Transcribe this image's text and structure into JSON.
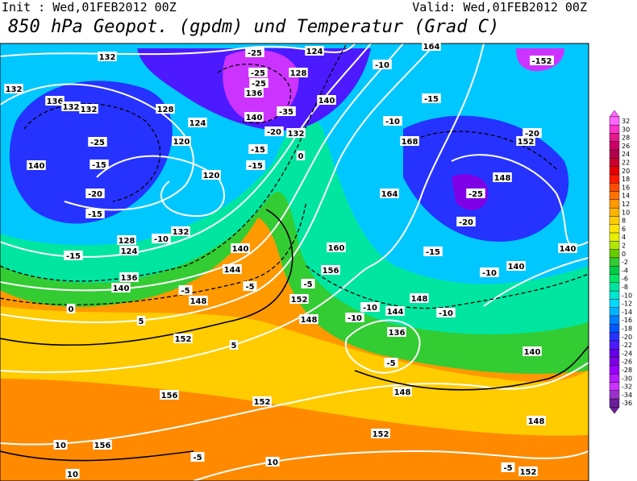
{
  "header": {
    "init": "Init : Wed,01FEB2012 00Z",
    "valid": "Valid: Wed,01FEB2012 00Z",
    "title": "850 hPa Geopot. (gpdm) und Temperatur (Grad C)"
  },
  "colorbar": {
    "levels": [
      32,
      30,
      28,
      26,
      24,
      22,
      20,
      18,
      16,
      14,
      12,
      10,
      8,
      6,
      4,
      2,
      0,
      -2,
      -4,
      -6,
      -8,
      -10,
      -12,
      -14,
      -16,
      -18,
      -20,
      -22,
      -24,
      -26,
      -28,
      -30,
      -32,
      -34,
      -36
    ],
    "colors": [
      "#ff66ff",
      "#ff33cc",
      "#e6198c",
      "#cc0066",
      "#b3004d",
      "#cc0033",
      "#e60000",
      "#ff1a00",
      "#ff4d00",
      "#ff7300",
      "#ff9900",
      "#ffb300",
      "#ffcc00",
      "#ffe600",
      "#e6f000",
      "#b3e600",
      "#66cc00",
      "#33cc33",
      "#00cc44",
      "#00e666",
      "#00e6a0",
      "#00e6d0",
      "#00d9ff",
      "#00b3ff",
      "#0080ff",
      "#0059ff",
      "#2633ff",
      "#4d1aff",
      "#6600e6",
      "#8000e6",
      "#9900ff",
      "#b31aff",
      "#cc33ff",
      "#9933cc",
      "#6b1f99"
    ]
  },
  "map": {
    "contour_labels": [
      "132",
      "124",
      "128",
      "132",
      "136",
      "132",
      "132",
      "128",
      "124",
      "120",
      "136",
      "140",
      "132",
      "140",
      "-10",
      "-15",
      "-10",
      "168",
      "152",
      "148",
      "-25",
      "-20",
      "164",
      "160",
      "156",
      "-15",
      "-10",
      "140",
      "140",
      "-25",
      "-15",
      "-20",
      "-15",
      "-15",
      "140",
      "128",
      "124",
      "132",
      "-10",
      "140",
      "144",
      "136",
      "140",
      "-5",
      "148",
      "-5",
      "0",
      "152",
      "148",
      "-5",
      "-10",
      "-10",
      "144",
      "148",
      "136",
      "-5",
      "-10",
      "140",
      "5",
      "152",
      "5",
      "156",
      "152",
      "152",
      "148",
      "148",
      "156",
      "10",
      "10",
      "10",
      "-5",
      "-5",
      "152",
      "-25",
      "-25",
      "-25",
      "-35",
      "-20",
      "-15",
      "-15",
      "-152",
      "164",
      "-20",
      "120",
      "0"
    ]
  }
}
